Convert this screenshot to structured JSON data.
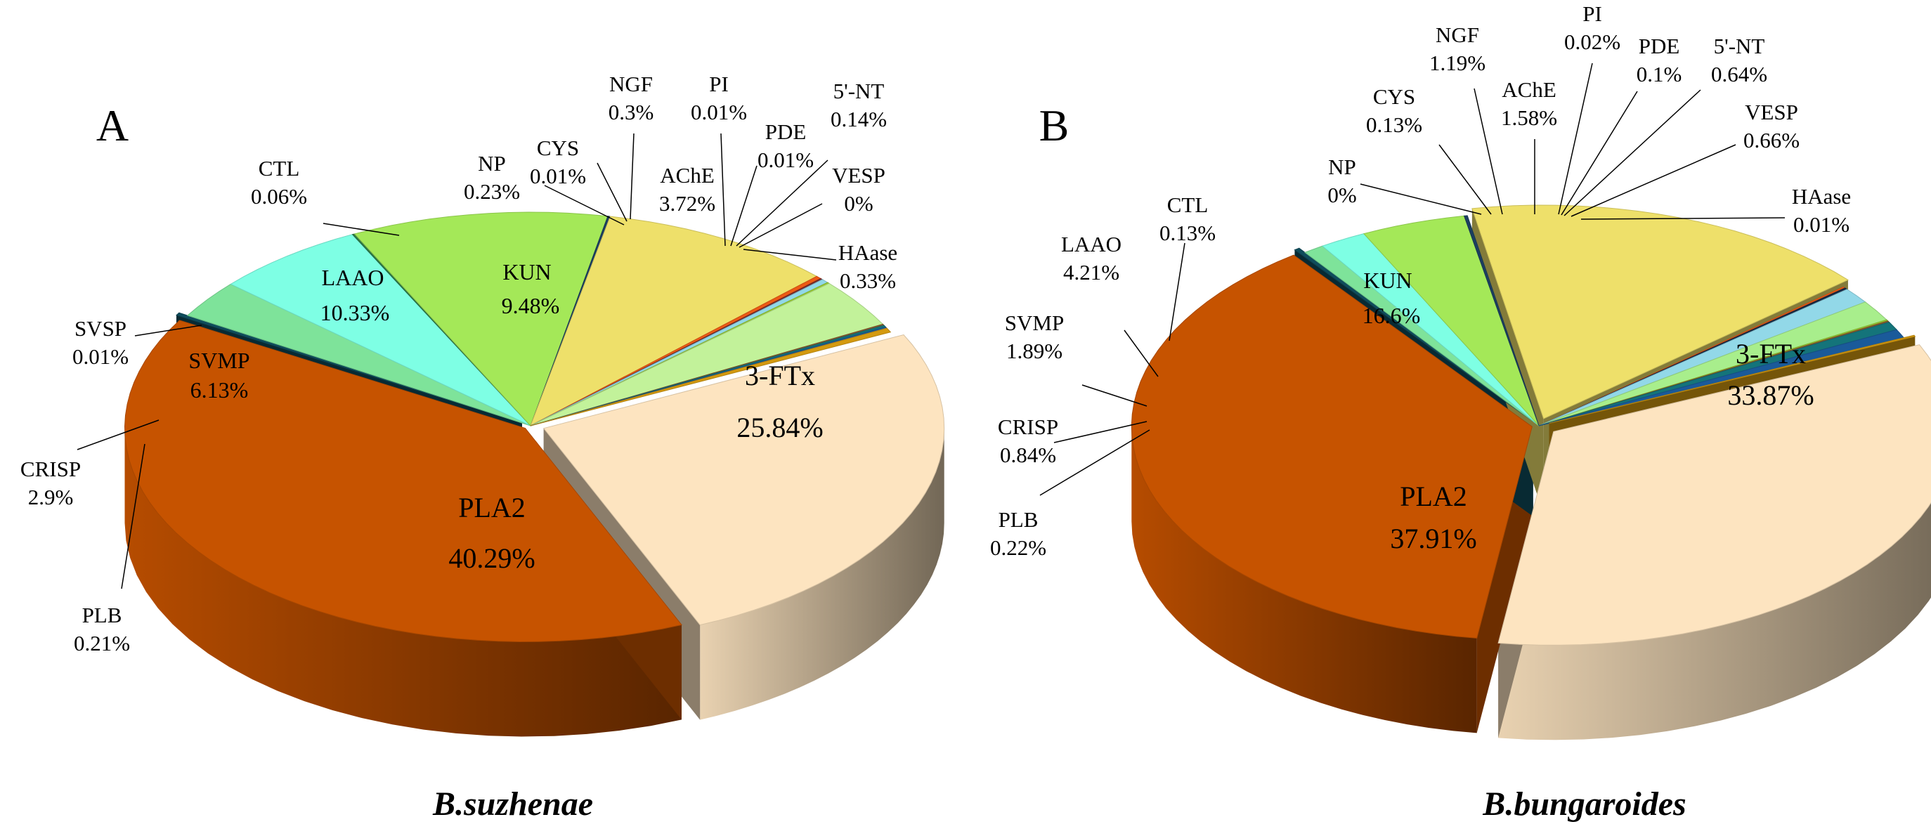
{
  "chart_data": [
    {
      "type": "pie",
      "panel": "A",
      "caption": "B.suzhenae",
      "slices": [
        {
          "name": "3-FTx",
          "value": 25.84,
          "label": "25.84%",
          "color": "#FDE4C0"
        },
        {
          "name": "PLA2",
          "value": 40.29,
          "label": "40.29%",
          "color": "#C65300"
        },
        {
          "name": "PLB",
          "value": 0.21,
          "label": "0.21%",
          "color": "#0F4C5C"
        },
        {
          "name": "CRISP",
          "value": 2.9,
          "label": "2.9%",
          "color": "#7EE39A"
        },
        {
          "name": "SVMP",
          "value": 6.13,
          "label": "6.13%",
          "color": "#7EFFE4"
        },
        {
          "name": "SVSP",
          "value": 0.01,
          "label": "0.01%",
          "color": "#2D7A47"
        },
        {
          "name": "LAAO",
          "value": 10.33,
          "label": "10.33%",
          "color": "#A4E858"
        },
        {
          "name": "CTL",
          "value": 0.06,
          "label": "0.06%",
          "color": "#1C3F60"
        },
        {
          "name": "KUN",
          "value": 9.48,
          "label": "9.48%",
          "color": "#EEE06A"
        },
        {
          "name": "NP",
          "value": 0.23,
          "label": "0.23%",
          "color": "#EE5A14"
        },
        {
          "name": "CYS",
          "value": 0.01,
          "label": "0.01%",
          "color": "#7B2E2E"
        },
        {
          "name": "NGF",
          "value": 0.3,
          "label": "0.3%",
          "color": "#92D8E8"
        },
        {
          "name": "PI",
          "value": 0.01,
          "label": "0.01%",
          "color": "#9ACD32"
        },
        {
          "name": "AChE",
          "value": 3.72,
          "label": "3.72%",
          "color": "#C2F29A"
        },
        {
          "name": "PDE",
          "value": 0.01,
          "label": "0.01%",
          "color": "#8A5A2B"
        },
        {
          "name": "5'-NT",
          "value": 0.14,
          "label": "0.14%",
          "color": "#14747A"
        },
        {
          "name": "VESP",
          "value": 0.0,
          "label": "0%",
          "color": "#1A5A9A"
        },
        {
          "name": "HAase",
          "value": 0.33,
          "label": "0.33%",
          "color": "#D49A10"
        }
      ]
    },
    {
      "type": "pie",
      "panel": "B",
      "caption": "B.bungaroides",
      "slices": [
        {
          "name": "3-FTx",
          "value": 33.87,
          "label": "33.87%",
          "color": "#FDE4C0"
        },
        {
          "name": "PLA2",
          "value": 37.91,
          "label": "37.91%",
          "color": "#C65300"
        },
        {
          "name": "PLB",
          "value": 0.22,
          "label": "0.22%",
          "color": "#0F4C5C"
        },
        {
          "name": "CRISP",
          "value": 0.84,
          "label": "0.84%",
          "color": "#7EE39A"
        },
        {
          "name": "SVMP",
          "value": 1.89,
          "label": "1.89%",
          "color": "#7EFFE4"
        },
        {
          "name": "LAAO",
          "value": 4.21,
          "label": "4.21%",
          "color": "#A4E858"
        },
        {
          "name": "CTL",
          "value": 0.13,
          "label": "0.13%",
          "color": "#1C3F60"
        },
        {
          "name": "KUN",
          "value": 16.6,
          "label": "16.6%",
          "color": "#EEE06A"
        },
        {
          "name": "NP",
          "value": 0.0,
          "label": "0%",
          "color": "#EE5A14"
        },
        {
          "name": "CYS",
          "value": 0.13,
          "label": "0.13%",
          "color": "#1A2A44"
        },
        {
          "name": "NGF",
          "value": 1.19,
          "label": "1.19%",
          "color": "#92D8E8"
        },
        {
          "name": "AChE",
          "value": 1.58,
          "label": "1.58%",
          "color": "#A8EE8C"
        },
        {
          "name": "PI",
          "value": 0.02,
          "label": "0.02%",
          "color": "#9ACD32"
        },
        {
          "name": "PDE",
          "value": 0.1,
          "label": "0.1%",
          "color": "#8A5A2B"
        },
        {
          "name": "5'-NT",
          "value": 0.64,
          "label": "0.64%",
          "color": "#14747A"
        },
        {
          "name": "VESP",
          "value": 0.66,
          "label": "0.66%",
          "color": "#1A5A9A"
        },
        {
          "name": "HAase",
          "value": 0.01,
          "label": "0.01%",
          "color": "#D49A10"
        }
      ]
    }
  ]
}
